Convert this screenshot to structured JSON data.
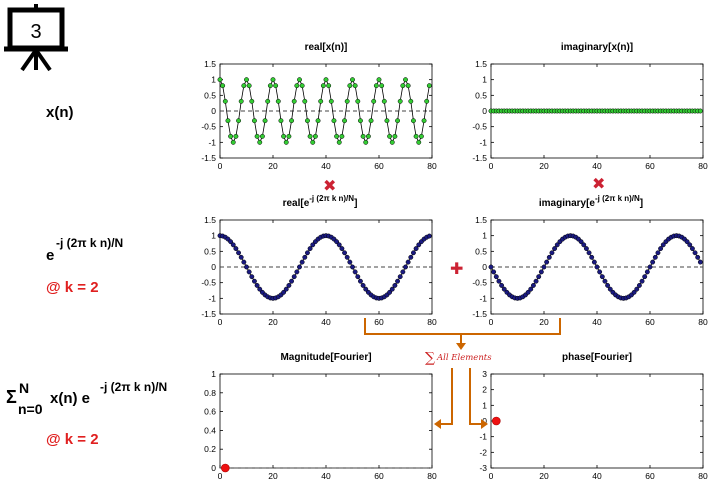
{
  "slide": {
    "number": "3"
  },
  "rows": {
    "signal": {
      "label": "x(n)"
    },
    "kernel": {
      "label_base": "e",
      "label_exp": "-j (2π k n)/N",
      "k_label": "@ k = 2"
    },
    "dft": {
      "sum_symbol": "Σ",
      "sum_upper": "N",
      "sum_lower": "n=0",
      "label_mid": "x(n) e",
      "label_exp": "-j (2π k n)/N",
      "k_label": "@ k = 2"
    }
  },
  "operators": {
    "multiply": "✖",
    "add": "✚",
    "sum_label": "All Elements"
  },
  "colors": {
    "green_marker": "#33cc33",
    "navy_marker": "#1a1a80",
    "red_marker": "#ee1111",
    "accent": "#cc6600",
    "operator_red": "#cc2233"
  },
  "chart_data": [
    {
      "id": "real-x",
      "type": "line",
      "title": "real[x(n)]",
      "formula": "cos(2*pi*0.1*n)",
      "x": {
        "start": 0,
        "end": 79,
        "step": 1
      },
      "xlim": [
        0,
        80
      ],
      "ylim": [
        -1.5,
        1.5
      ],
      "xticks": [
        "0",
        "20",
        "40",
        "60",
        "80"
      ],
      "yticks": [
        "1.5",
        "1",
        "0.5",
        "0",
        "-0.5",
        "-1",
        "-1.5"
      ],
      "marker_color": "#33cc33",
      "zero_line": true
    },
    {
      "id": "imag-x",
      "type": "line",
      "title": "imaginary[x(n)]",
      "formula": "0",
      "x": {
        "start": 0,
        "end": 79,
        "step": 1
      },
      "xlim": [
        0,
        80
      ],
      "ylim": [
        -1.5,
        1.5
      ],
      "xticks": [
        "0",
        "20",
        "40",
        "60",
        "80"
      ],
      "yticks": [
        "1.5",
        "1",
        "0.5",
        "0",
        "-0.5",
        "-1",
        "-1.5"
      ],
      "marker_color": "#33cc33",
      "zero_line": true
    },
    {
      "id": "real-e",
      "type": "line",
      "title_base": "real[e",
      "title_exp": "-j (2π k n)/N",
      "title_end": "]",
      "formula": "cos(2*pi*2*n/80)",
      "x": {
        "start": 0,
        "end": 79,
        "step": 1
      },
      "xlim": [
        0,
        80
      ],
      "ylim": [
        -1.5,
        1.5
      ],
      "xticks": [
        "0",
        "20",
        "40",
        "60",
        "80"
      ],
      "yticks": [
        "1.5",
        "1",
        "0.5",
        "0",
        "-0.5",
        "-1",
        "-1.5"
      ],
      "marker_color": "#1a1a80",
      "zero_line": true
    },
    {
      "id": "imag-e",
      "type": "line",
      "title_base": "imaginary[e",
      "title_exp": "-j (2π k n)/N",
      "title_end": "]",
      "formula": "-sin(2*pi*2*n/80)",
      "x": {
        "start": 0,
        "end": 79,
        "step": 1
      },
      "xlim": [
        0,
        80
      ],
      "ylim": [
        -1.5,
        1.5
      ],
      "xticks": [
        "0",
        "20",
        "40",
        "60",
        "80"
      ],
      "yticks": [
        "1.5",
        "1",
        "0.5",
        "0",
        "-0.5",
        "-1",
        "-1.5"
      ],
      "marker_color": "#1a1a80",
      "zero_line": true
    },
    {
      "id": "magnitude",
      "type": "scatter",
      "title": "Magnitude[Fourier]",
      "points": [
        {
          "x": 2,
          "y": 0
        }
      ],
      "xlim": [
        0,
        80
      ],
      "ylim": [
        0,
        1
      ],
      "xticks": [
        "0",
        "20",
        "40",
        "60",
        "80"
      ],
      "yticks": [
        "1",
        "0.8",
        "0.6",
        "0.4",
        "0.2",
        "0"
      ],
      "marker_color": "#ee1111",
      "zero_line": true
    },
    {
      "id": "phase",
      "type": "scatter",
      "title": "phase[Fourier]",
      "points": [
        {
          "x": 2,
          "y": 0
        }
      ],
      "xlim": [
        0,
        80
      ],
      "ylim": [
        -3,
        3
      ],
      "xticks": [
        "0",
        "20",
        "40",
        "60",
        "80"
      ],
      "yticks": [
        "3",
        "2",
        "1",
        "0",
        "-1",
        "-2",
        "-3"
      ],
      "marker_color": "#ee1111",
      "zero_line": false
    }
  ]
}
